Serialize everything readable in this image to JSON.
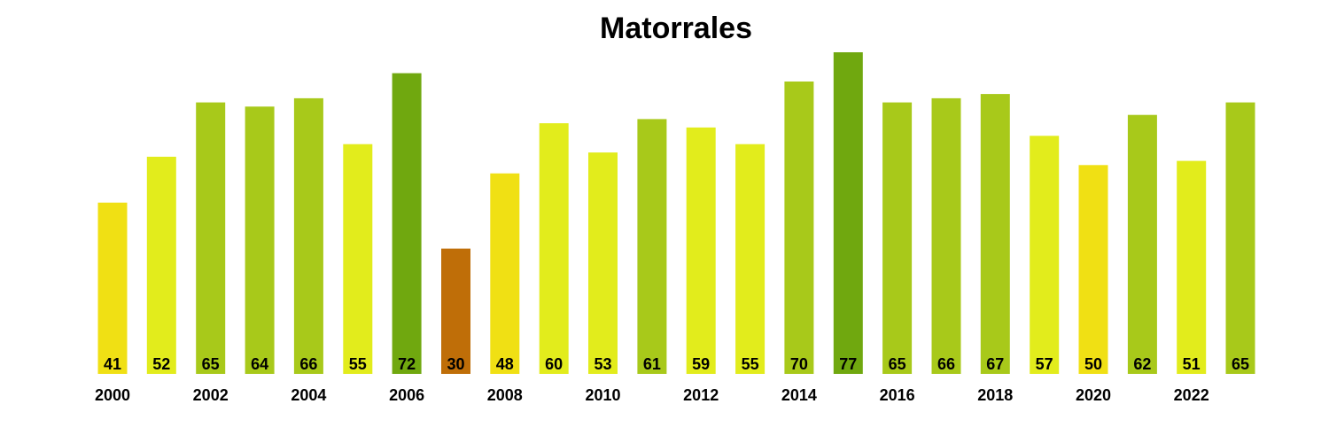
{
  "chart_data": {
    "type": "bar",
    "title": "Matorrales",
    "xlabel": "",
    "ylabel": "",
    "grid": false,
    "legend": "none",
    "categories": [
      2000,
      2001,
      2002,
      2003,
      2004,
      2005,
      2006,
      2007,
      2008,
      2009,
      2010,
      2011,
      2012,
      2013,
      2014,
      2015,
      2016,
      2017,
      2018,
      2019,
      2020,
      2021,
      2022,
      2023
    ],
    "values": [
      41,
      52,
      65,
      64,
      66,
      55,
      72,
      30,
      48,
      60,
      53,
      61,
      59,
      55,
      70,
      77,
      65,
      66,
      67,
      57,
      50,
      62,
      51,
      65
    ],
    "colors": [
      "#f0e014",
      "#e2ec1c",
      "#a8c91a",
      "#a8c91a",
      "#a8c91a",
      "#e2ec1c",
      "#70a80f",
      "#bf6e08",
      "#f0e014",
      "#e2ec1c",
      "#e2ec1c",
      "#a8c91a",
      "#e2ec1c",
      "#e2ec1c",
      "#a8c91a",
      "#70a80f",
      "#a8c91a",
      "#a8c91a",
      "#a8c91a",
      "#e2ec1c",
      "#f0e014",
      "#a8c91a",
      "#e2ec1c",
      "#a8c91a"
    ],
    "tick_labels": [
      "2000",
      "2002",
      "2004",
      "2006",
      "2008",
      "2010",
      "2012",
      "2014",
      "2016",
      "2018",
      "2020",
      "2022"
    ],
    "ylim": [
      0,
      77
    ]
  }
}
